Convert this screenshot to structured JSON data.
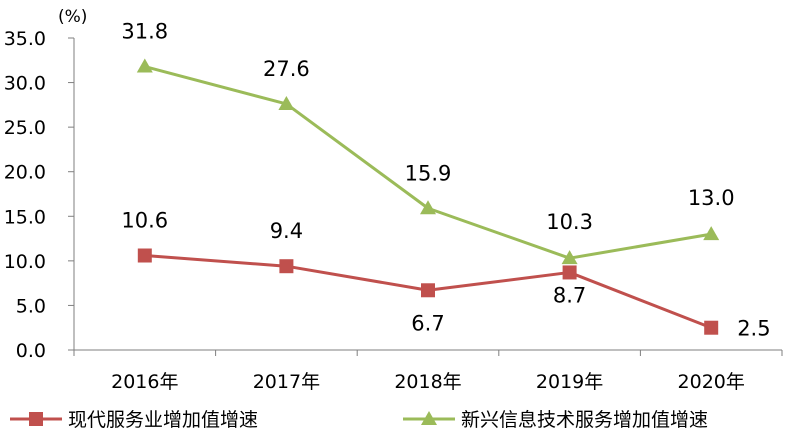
{
  "chart_data": {
    "type": "line",
    "title": "",
    "unit_label": "(%)",
    "xlabel": "",
    "ylabel": "",
    "categories": [
      "2016年",
      "2017年",
      "2018年",
      "2019年",
      "2020年"
    ],
    "ylim": [
      0,
      35
    ],
    "y_ticks": [
      "0.0",
      "5.0",
      "10.0",
      "15.0",
      "20.0",
      "25.0",
      "30.0",
      "35.0"
    ],
    "grid": false,
    "legend_position": "bottom",
    "series": [
      {
        "name": "现代服务业增加值增速",
        "color": "#c0504d",
        "marker": "square",
        "values": [
          10.6,
          9.4,
          6.7,
          8.7,
          2.5
        ],
        "labels": [
          "10.6",
          "9.4",
          "6.7",
          "8.7",
          "2.5"
        ]
      },
      {
        "name": "新兴信息技术服务增加值增速",
        "color": "#9bbb59",
        "marker": "triangle",
        "values": [
          31.8,
          27.6,
          15.9,
          10.3,
          13.0
        ],
        "labels": [
          "31.8",
          "27.6",
          "15.9",
          "10.3",
          "13.0"
        ]
      }
    ]
  }
}
